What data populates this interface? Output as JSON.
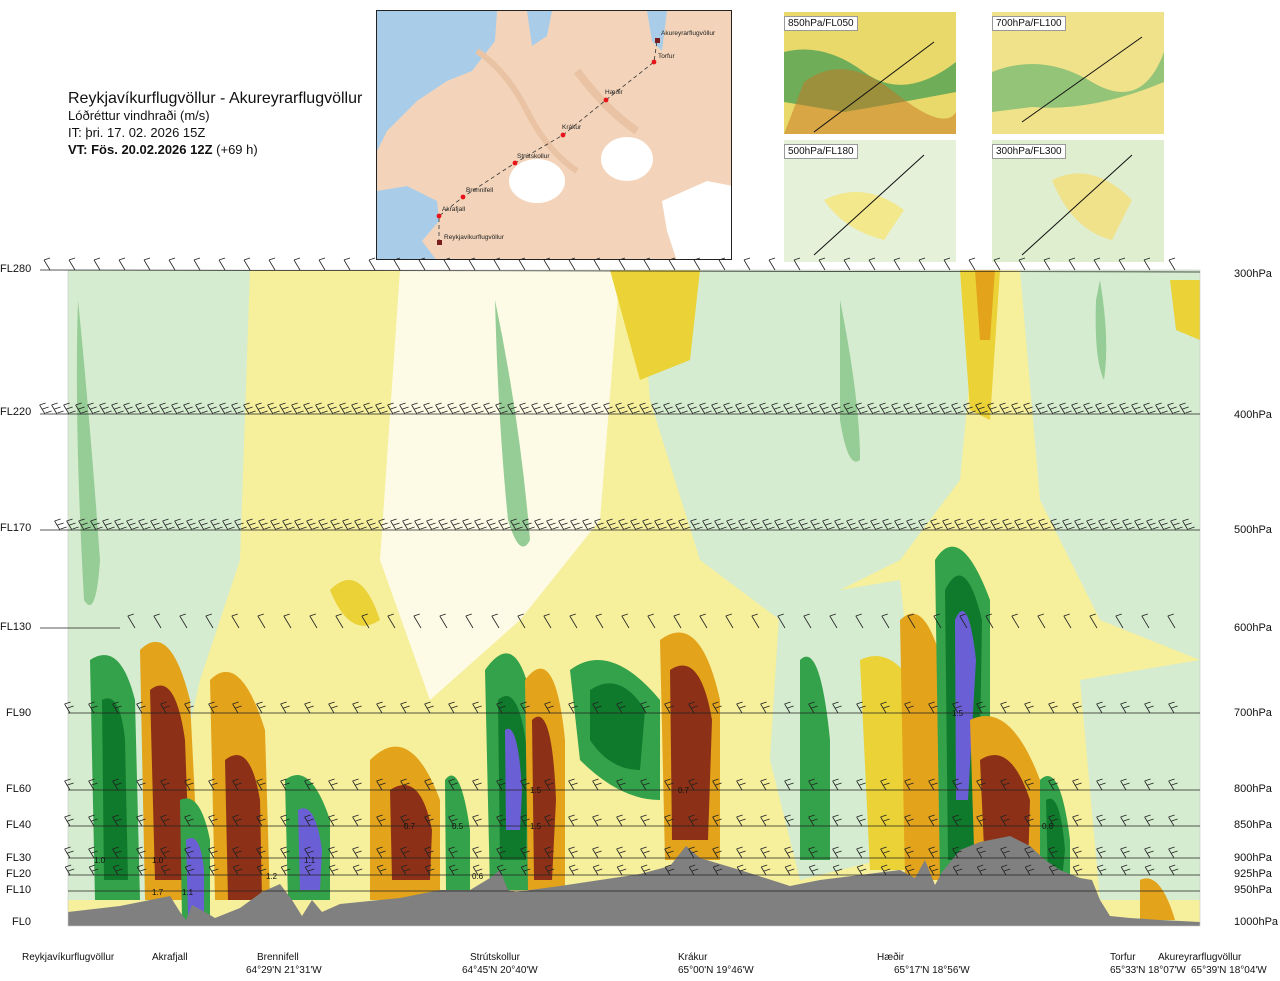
{
  "title": {
    "route": "Reykjavíkurflugvöllur - Akureyrarflugvöllur",
    "quantity": "Lóðréttur vindhraði (m/s)",
    "issue_time": "IT: þri. 17. 02. 2026 15Z",
    "valid_time_bold": "VT: Fös. 20.02.2026 12Z",
    "valid_time_offset": "(+69 h)"
  },
  "map": {
    "waypoints": [
      "Akureyrarflugvöllur",
      "Torfur",
      "Hæðir",
      "Krákur",
      "Strútskollur",
      "Brennifell",
      "Akrafjall",
      "Reykjavíkurflugvöllur"
    ],
    "colors": {
      "sea": "#a9cde8",
      "land": "#f3d4ba",
      "ice": "#ffffff",
      "track": "#333333",
      "waypoint": "#e8141c"
    }
  },
  "mini_maps": [
    {
      "label": "850hPa/FL050"
    },
    {
      "label": "700hPa/FL100"
    },
    {
      "label": "500hPa/FL180"
    },
    {
      "label": "300hPa/FL300"
    }
  ],
  "levels_left": [
    "FL280",
    "FL220",
    "FL170",
    "FL130",
    "FL90",
    "FL60",
    "FL40",
    "FL30",
    "FL20",
    "FL10",
    "FL0"
  ],
  "levels_right": [
    "300hPa",
    "400hPa",
    "500hPa",
    "600hPa",
    "700hPa",
    "800hPa",
    "850hPa",
    "900hPa",
    "925hPa",
    "950hPa",
    "1000hPa"
  ],
  "locations": [
    {
      "name": "Reykjavíkurflugvöllur",
      "coord": ""
    },
    {
      "name": "Akrafjall",
      "coord": ""
    },
    {
      "name": "Brennifell",
      "coord": "64°29'N 21°31'W"
    },
    {
      "name": "Strútskollur",
      "coord": "64°45'N 20°40'W"
    },
    {
      "name": "Krákur",
      "coord": "65°00'N 19°46'W"
    },
    {
      "name": "Hæðir",
      "coord": "65°17'N 18°56'W"
    },
    {
      "name": "Torfur",
      "coord": "65°33'N 18°07'W"
    },
    {
      "name": "Akureyrarflugvöllur",
      "coord": "65°39'N 18°04'W"
    }
  ],
  "chart_data": {
    "type": "heatmap",
    "title": "Lóðréttur vindhraði (m/s)",
    "x_axis": "distance along route",
    "y_axis_left": [
      "FL0",
      "FL10",
      "FL20",
      "FL30",
      "FL40",
      "FL60",
      "FL90",
      "FL130",
      "FL170",
      "FL220",
      "FL280"
    ],
    "y_axis_right": [
      "1000hPa",
      "950hPa",
      "925hPa",
      "900hPa",
      "850hPa",
      "800hPa",
      "700hPa",
      "600hPa",
      "500hPa",
      "400hPa",
      "300hPa"
    ],
    "colors": {
      "strong_up": "#6b5fd6",
      "up_3": "#0f7a2c",
      "up_2": "#33a24a",
      "up_1": "#96cc95",
      "weak": "#d5ecd0",
      "neutral": "#fdfbe6",
      "down_1": "#f6ef9c",
      "down_2": "#ead237",
      "down_3": "#e3a31b",
      "down_4": "#c8731f",
      "down_5": "#8c3117",
      "terrain": "#808080"
    },
    "value_labels": [
      {
        "text": "1.0",
        "location": "Reykjavíkurflugvöllur",
        "level": "FL30"
      },
      {
        "text": "1.0",
        "location": "Akrafjall",
        "level": "FL30"
      },
      {
        "text": "1.7",
        "location": "Akrafjall",
        "level": "FL10"
      },
      {
        "text": "1.1",
        "location": "Akrafjall",
        "level": "FL10"
      },
      {
        "text": "1.2",
        "location": "Brennifell",
        "level": "FL20"
      },
      {
        "text": "1.1",
        "location": "Brennifell",
        "level": "FL30"
      },
      {
        "text": "0.7",
        "location": "Brennifell",
        "level": "FL40"
      },
      {
        "text": "0.5",
        "location": "Strútskollur",
        "level": "FL40"
      },
      {
        "text": "0.6",
        "location": "Strútskollur",
        "level": "FL20"
      },
      {
        "text": "1.5",
        "location": "Strútskollur",
        "level": "FL60"
      },
      {
        "text": "1.5",
        "location": "Strútskollur",
        "level": "FL40"
      },
      {
        "text": "0.7",
        "location": "Krákur",
        "level": "FL60"
      },
      {
        "text": "1.5",
        "location": "Hæðir",
        "level": "FL90"
      },
      {
        "text": "0.6",
        "location": "Hæðir",
        "level": "FL40"
      }
    ]
  }
}
